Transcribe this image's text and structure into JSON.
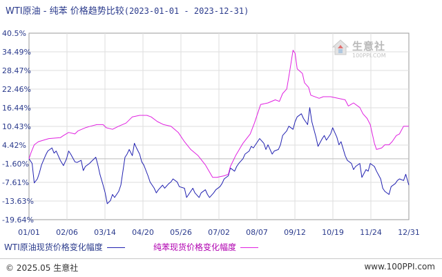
{
  "title": {
    "main": "WTI原油 - 纯苯 价格趋势比较",
    "range": "(2023-01-01 - 2023-12-31)"
  },
  "watermark": {
    "name": "生意社",
    "url": "100PPI.COM"
  },
  "footer": {
    "left": "© 2025.05 生意社",
    "right": "www.100PPI.com"
  },
  "colors": {
    "wti": "#2020b0",
    "benzene": "#e020e0",
    "text": "#2a3a8c",
    "grid": "#dddddd"
  },
  "chart_data": {
    "type": "line",
    "title": "WTI原油 - 纯苯 价格趋势比较",
    "subtitle": "(2023-01-01 - 2023-12-31)",
    "x_range": [
      "2023-01-01",
      "2023-12-31"
    ],
    "x_tick_labels": [
      "01/01",
      "02/06",
      "03/14",
      "04/20",
      "05/26",
      "07/02",
      "08/07",
      "09/12",
      "10/19",
      "11/24",
      "12/31"
    ],
    "y_tick_labels": [
      "40.5%",
      "34.49%",
      "28.47%",
      "22.46%",
      "16.44%",
      "10.43%",
      "4.42%",
      "-1.60%",
      "-7.61%",
      "-13.63%",
      "-19.64%"
    ],
    "ylim": [
      -19.64,
      40.5
    ],
    "y_unit": "%",
    "grid": true,
    "legend_position": "bottom",
    "series": [
      {
        "name": "WTI原油现货价格变化幅度",
        "color": "#2020b0",
        "points": [
          [
            "2023-01-01",
            0
          ],
          [
            "2023-01-04",
            -1.5
          ],
          [
            "2023-01-06",
            -7.8
          ],
          [
            "2023-01-09",
            -6.5
          ],
          [
            "2023-01-11",
            -4.5
          ],
          [
            "2023-01-13",
            -2.0
          ],
          [
            "2023-01-17",
            1.2
          ],
          [
            "2023-01-19",
            2.5
          ],
          [
            "2023-01-23",
            3.5
          ],
          [
            "2023-01-25",
            1.8
          ],
          [
            "2023-01-27",
            2.5
          ],
          [
            "2023-01-31",
            -0.5
          ],
          [
            "2023-02-03",
            -2.2
          ],
          [
            "2023-02-06",
            0.0
          ],
          [
            "2023-02-08",
            2.5
          ],
          [
            "2023-02-10",
            1.5
          ],
          [
            "2023-02-14",
            -1.0
          ],
          [
            "2023-02-16",
            -1.2
          ],
          [
            "2023-02-20",
            -0.5
          ],
          [
            "2023-02-22",
            -3.8
          ],
          [
            "2023-02-24",
            -2.5
          ],
          [
            "2023-02-28",
            -1.5
          ],
          [
            "2023-03-02",
            -0.8
          ],
          [
            "2023-03-06",
            0.5
          ],
          [
            "2023-03-08",
            -2.0
          ],
          [
            "2023-03-10",
            -5.0
          ],
          [
            "2023-03-13",
            -8.5
          ],
          [
            "2023-03-15",
            -11.0
          ],
          [
            "2023-03-17",
            -14.5
          ],
          [
            "2023-03-20",
            -13.5
          ],
          [
            "2023-03-22",
            -11.5
          ],
          [
            "2023-03-24",
            -12.5
          ],
          [
            "2023-03-28",
            -10.5
          ],
          [
            "2023-03-30",
            -8.5
          ],
          [
            "2023-04-03",
            0.5
          ],
          [
            "2023-04-05",
            1.5
          ],
          [
            "2023-04-07",
            3.0
          ],
          [
            "2023-04-10",
            1.0
          ],
          [
            "2023-04-12",
            5.0
          ],
          [
            "2023-04-14",
            3.5
          ],
          [
            "2023-04-17",
            1.5
          ],
          [
            "2023-04-19",
            -1.0
          ],
          [
            "2023-04-21",
            -2.0
          ],
          [
            "2023-04-25",
            -5.5
          ],
          [
            "2023-04-27",
            -7.5
          ],
          [
            "2023-05-01",
            -9.5
          ],
          [
            "2023-05-03",
            -11.0
          ],
          [
            "2023-05-05",
            -10.0
          ],
          [
            "2023-05-09",
            -8.5
          ],
          [
            "2023-05-11",
            -9.5
          ],
          [
            "2023-05-15",
            -8.0
          ],
          [
            "2023-05-17",
            -7.5
          ],
          [
            "2023-05-19",
            -6.5
          ],
          [
            "2023-05-23",
            -7.5
          ],
          [
            "2023-05-25",
            -9.0
          ],
          [
            "2023-05-30",
            -9.5
          ],
          [
            "2023-06-01",
            -12.5
          ],
          [
            "2023-06-05",
            -10.5
          ],
          [
            "2023-06-07",
            -9.5
          ],
          [
            "2023-06-09",
            -11.0
          ],
          [
            "2023-06-13",
            -12.5
          ],
          [
            "2023-06-15",
            -11.0
          ],
          [
            "2023-06-19",
            -10.0
          ],
          [
            "2023-06-21",
            -11.5
          ],
          [
            "2023-06-23",
            -12.5
          ],
          [
            "2023-06-27",
            -11.0
          ],
          [
            "2023-06-29",
            -10.0
          ],
          [
            "2023-07-03",
            -9.0
          ],
          [
            "2023-07-05",
            -8.0
          ],
          [
            "2023-07-07",
            -6.5
          ],
          [
            "2023-07-11",
            -5.5
          ],
          [
            "2023-07-13",
            -3.0
          ],
          [
            "2023-07-17",
            -4.0
          ],
          [
            "2023-07-19",
            -2.5
          ],
          [
            "2023-07-21",
            -1.5
          ],
          [
            "2023-07-25",
            0.0
          ],
          [
            "2023-07-27",
            1.5
          ],
          [
            "2023-07-31",
            2.5
          ],
          [
            "2023-08-02",
            4.0
          ],
          [
            "2023-08-04",
            3.5
          ],
          [
            "2023-08-08",
            5.5
          ],
          [
            "2023-08-10",
            6.5
          ],
          [
            "2023-08-14",
            5.0
          ],
          [
            "2023-08-16",
            3.0
          ],
          [
            "2023-08-18",
            4.5
          ],
          [
            "2023-08-22",
            1.5
          ],
          [
            "2023-08-24",
            2.5
          ],
          [
            "2023-08-28",
            3.0
          ],
          [
            "2023-08-30",
            4.5
          ],
          [
            "2023-09-01",
            7.5
          ],
          [
            "2023-09-05",
            9.0
          ],
          [
            "2023-09-07",
            10.5
          ],
          [
            "2023-09-11",
            9.5
          ],
          [
            "2023-09-13",
            12.0
          ],
          [
            "2023-09-15",
            13.5
          ],
          [
            "2023-09-19",
            14.5
          ],
          [
            "2023-09-21",
            13.0
          ],
          [
            "2023-09-25",
            11.0
          ],
          [
            "2023-09-27",
            16.5
          ],
          [
            "2023-09-29",
            12.0
          ],
          [
            "2023-10-03",
            7.0
          ],
          [
            "2023-10-05",
            4.0
          ],
          [
            "2023-10-09",
            6.5
          ],
          [
            "2023-10-11",
            7.5
          ],
          [
            "2023-10-13",
            6.0
          ],
          [
            "2023-10-17",
            8.0
          ],
          [
            "2023-10-19",
            10.0
          ],
          [
            "2023-10-23",
            7.0
          ],
          [
            "2023-10-25",
            4.5
          ],
          [
            "2023-10-27",
            5.5
          ],
          [
            "2023-10-31",
            1.0
          ],
          [
            "2023-11-02",
            -0.5
          ],
          [
            "2023-11-06",
            -1.5
          ],
          [
            "2023-11-08",
            -3.5
          ],
          [
            "2023-11-10",
            -2.5
          ],
          [
            "2023-11-14",
            -1.5
          ],
          [
            "2023-11-16",
            -6.0
          ],
          [
            "2023-11-20",
            -3.5
          ],
          [
            "2023-11-22",
            -4.0
          ],
          [
            "2023-11-24",
            -1.5
          ],
          [
            "2023-11-28",
            -2.5
          ],
          [
            "2023-11-30",
            -4.0
          ],
          [
            "2023-12-04",
            -6.5
          ],
          [
            "2023-12-06",
            -9.5
          ],
          [
            "2023-12-08",
            -10.5
          ],
          [
            "2023-12-12",
            -11.5
          ],
          [
            "2023-12-14",
            -9.0
          ],
          [
            "2023-12-18",
            -8.0
          ],
          [
            "2023-12-20",
            -7.0
          ],
          [
            "2023-12-22",
            -6.5
          ],
          [
            "2023-12-26",
            -7.0
          ],
          [
            "2023-12-28",
            -5.0
          ],
          [
            "2023-12-31",
            -8.5
          ]
        ]
      },
      {
        "name": "纯苯现货价格变化幅度",
        "color": "#e020e0",
        "points": [
          [
            "2023-01-01",
            0
          ],
          [
            "2023-01-03",
            2.0
          ],
          [
            "2023-01-06",
            4.5
          ],
          [
            "2023-01-10",
            5.5
          ],
          [
            "2023-01-20",
            6.5
          ],
          [
            "2023-01-31",
            6.8
          ],
          [
            "2023-02-03",
            7.5
          ],
          [
            "2023-02-08",
            8.5
          ],
          [
            "2023-02-14",
            8.0
          ],
          [
            "2023-02-17",
            9.0
          ],
          [
            "2023-02-24",
            10.0
          ],
          [
            "2023-03-01",
            10.5
          ],
          [
            "2023-03-07",
            11.0
          ],
          [
            "2023-03-13",
            11.0
          ],
          [
            "2023-03-16",
            10.0
          ],
          [
            "2023-03-22",
            9.5
          ],
          [
            "2023-03-28",
            10.5
          ],
          [
            "2023-04-04",
            11.5
          ],
          [
            "2023-04-10",
            13.5
          ],
          [
            "2023-04-17",
            14.0
          ],
          [
            "2023-04-24",
            14.0
          ],
          [
            "2023-04-28",
            13.5
          ],
          [
            "2023-05-04",
            12.0
          ],
          [
            "2023-05-10",
            11.0
          ],
          [
            "2023-05-17",
            10.5
          ],
          [
            "2023-05-24",
            8.5
          ],
          [
            "2023-05-30",
            5.5
          ],
          [
            "2023-06-05",
            3.0
          ],
          [
            "2023-06-12",
            1.0
          ],
          [
            "2023-06-19",
            -2.0
          ],
          [
            "2023-06-26",
            -6.0
          ],
          [
            "2023-06-30",
            -6.0
          ],
          [
            "2023-07-07",
            -5.5
          ],
          [
            "2023-07-11",
            -5.0
          ],
          [
            "2023-07-13",
            -2.5
          ],
          [
            "2023-07-18",
            1.0
          ],
          [
            "2023-07-25",
            5.0
          ],
          [
            "2023-08-01",
            8.0
          ],
          [
            "2023-08-05",
            11.5
          ],
          [
            "2023-08-08",
            14.5
          ],
          [
            "2023-08-11",
            17.5
          ],
          [
            "2023-08-18",
            18.0
          ],
          [
            "2023-08-25",
            19.0
          ],
          [
            "2023-08-29",
            18.5
          ],
          [
            "2023-09-01",
            21.0
          ],
          [
            "2023-09-05",
            22.5
          ],
          [
            "2023-09-08",
            28.5
          ],
          [
            "2023-09-11",
            35.0
          ],
          [
            "2023-09-13",
            34.0
          ],
          [
            "2023-09-15",
            29.0
          ],
          [
            "2023-09-20",
            27.5
          ],
          [
            "2023-09-22",
            24.5
          ],
          [
            "2023-09-26",
            23.0
          ],
          [
            "2023-09-28",
            20.5
          ],
          [
            "2023-10-06",
            19.5
          ],
          [
            "2023-10-10",
            20.0
          ],
          [
            "2023-10-17",
            20.0
          ],
          [
            "2023-10-24",
            19.5
          ],
          [
            "2023-10-31",
            19.0
          ],
          [
            "2023-11-03",
            17.0
          ],
          [
            "2023-11-08",
            18.0
          ],
          [
            "2023-11-14",
            16.5
          ],
          [
            "2023-11-17",
            14.5
          ],
          [
            "2023-11-21",
            13.0
          ],
          [
            "2023-11-24",
            11.0
          ],
          [
            "2023-11-28",
            5.0
          ],
          [
            "2023-11-30",
            3.0
          ],
          [
            "2023-12-05",
            3.5
          ],
          [
            "2023-12-08",
            4.5
          ],
          [
            "2023-12-12",
            4.5
          ],
          [
            "2023-12-15",
            5.5
          ],
          [
            "2023-12-19",
            7.5
          ],
          [
            "2023-12-22",
            8.0
          ],
          [
            "2023-12-26",
            10.5
          ],
          [
            "2023-12-31",
            10.5
          ]
        ]
      }
    ]
  }
}
